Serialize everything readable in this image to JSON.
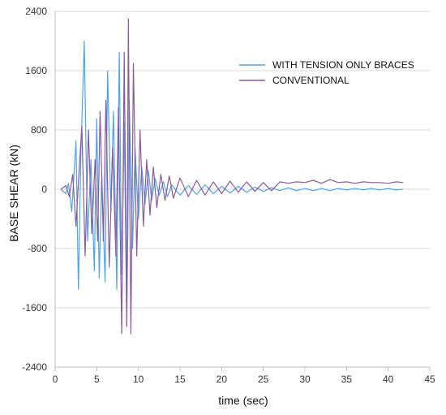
{
  "chart_data": {
    "type": "line",
    "xlabel": "time (sec)",
    "ylabel": "BASE SHEAR (kN)",
    "xlim": [
      0,
      45
    ],
    "ylim": [
      -2400,
      2400
    ],
    "x_ticks": [
      0,
      5,
      10,
      15,
      20,
      25,
      30,
      35,
      40,
      45
    ],
    "y_ticks": [
      -2400,
      -1600,
      -800,
      0,
      800,
      1600,
      2400
    ],
    "y_gridlines": [
      -1600,
      -800,
      0,
      800,
      1600,
      2400
    ],
    "legend_position": "top-right",
    "series": [
      {
        "name": "WITH TENSION ONLY BRACES",
        "color": "#4da3ee",
        "x": [
          0.7,
          1.3,
          1.6,
          2.0,
          2.5,
          2.8,
          3.1,
          3.5,
          3.9,
          4.3,
          4.7,
          5.0,
          5.3,
          5.6,
          6.0,
          6.3,
          6.7,
          7.0,
          7.4,
          7.7,
          8.0,
          8.3,
          8.6,
          8.9,
          9.3,
          9.6,
          10.0,
          10.4,
          10.8,
          11.2,
          11.6,
          12.0,
          12.5,
          13.0,
          13.5,
          14.0,
          15.0,
          16.0,
          17.0,
          18.0,
          19.0,
          20.0,
          21.0,
          22.0,
          23.0,
          24.0,
          25.0,
          26.0,
          27.0,
          28.0,
          29.0,
          30.0,
          31.0,
          32.0,
          33.0,
          34.0,
          35.0,
          36.0,
          37.0,
          38.0,
          39.0,
          40.0,
          41.0,
          41.8
        ],
        "values": [
          0,
          -60,
          80,
          -300,
          650,
          -1350,
          500,
          2000,
          -700,
          400,
          -1100,
          950,
          -1200,
          200,
          -1250,
          1600,
          -300,
          1050,
          -1350,
          1850,
          -1150,
          900,
          -1850,
          1200,
          -800,
          550,
          -400,
          300,
          -200,
          250,
          -150,
          150,
          -80,
          100,
          -100,
          60,
          -80,
          50,
          -70,
          60,
          -60,
          40,
          -50,
          40,
          -40,
          30,
          -30,
          20,
          -20,
          20,
          -20,
          10,
          -20,
          10,
          -20,
          10,
          -10,
          10,
          -10,
          10,
          -10,
          10,
          -10,
          0
        ]
      },
      {
        "name": "CONVENTIONAL",
        "color": "#8a5a9c",
        "x": [
          0.7,
          1.3,
          1.7,
          2.1,
          2.5,
          2.9,
          3.2,
          3.6,
          4.0,
          4.4,
          4.8,
          5.1,
          5.4,
          5.8,
          6.1,
          6.5,
          6.9,
          7.3,
          7.6,
          8.0,
          8.3,
          8.6,
          8.8,
          9.1,
          9.4,
          9.8,
          10.2,
          10.6,
          11.0,
          11.4,
          11.8,
          12.2,
          12.7,
          13.2,
          13.7,
          14.2,
          15.0,
          16.0,
          17.0,
          18.0,
          19.0,
          20.0,
          21.0,
          22.0,
          23.0,
          24.0,
          25.0,
          26.0,
          27.0,
          28.0,
          29.0,
          30.0,
          31.0,
          32.0,
          33.0,
          34.0,
          35.0,
          36.0,
          37.0,
          38.0,
          39.0,
          40.0,
          41.0,
          41.8
        ],
        "values": [
          0,
          50,
          -100,
          200,
          -500,
          300,
          850,
          -900,
          800,
          -600,
          400,
          -700,
          1050,
          -700,
          1200,
          -1050,
          550,
          -900,
          1100,
          -1950,
          1850,
          -1850,
          2300,
          -1950,
          1700,
          -900,
          800,
          -500,
          400,
          -350,
          300,
          -250,
          200,
          -150,
          180,
          -120,
          150,
          -100,
          120,
          -80,
          100,
          -60,
          110,
          -40,
          100,
          -30,
          90,
          -20,
          100,
          80,
          100,
          90,
          120,
          80,
          130,
          90,
          100,
          80,
          100,
          90,
          90,
          80,
          100,
          90
        ]
      }
    ]
  }
}
